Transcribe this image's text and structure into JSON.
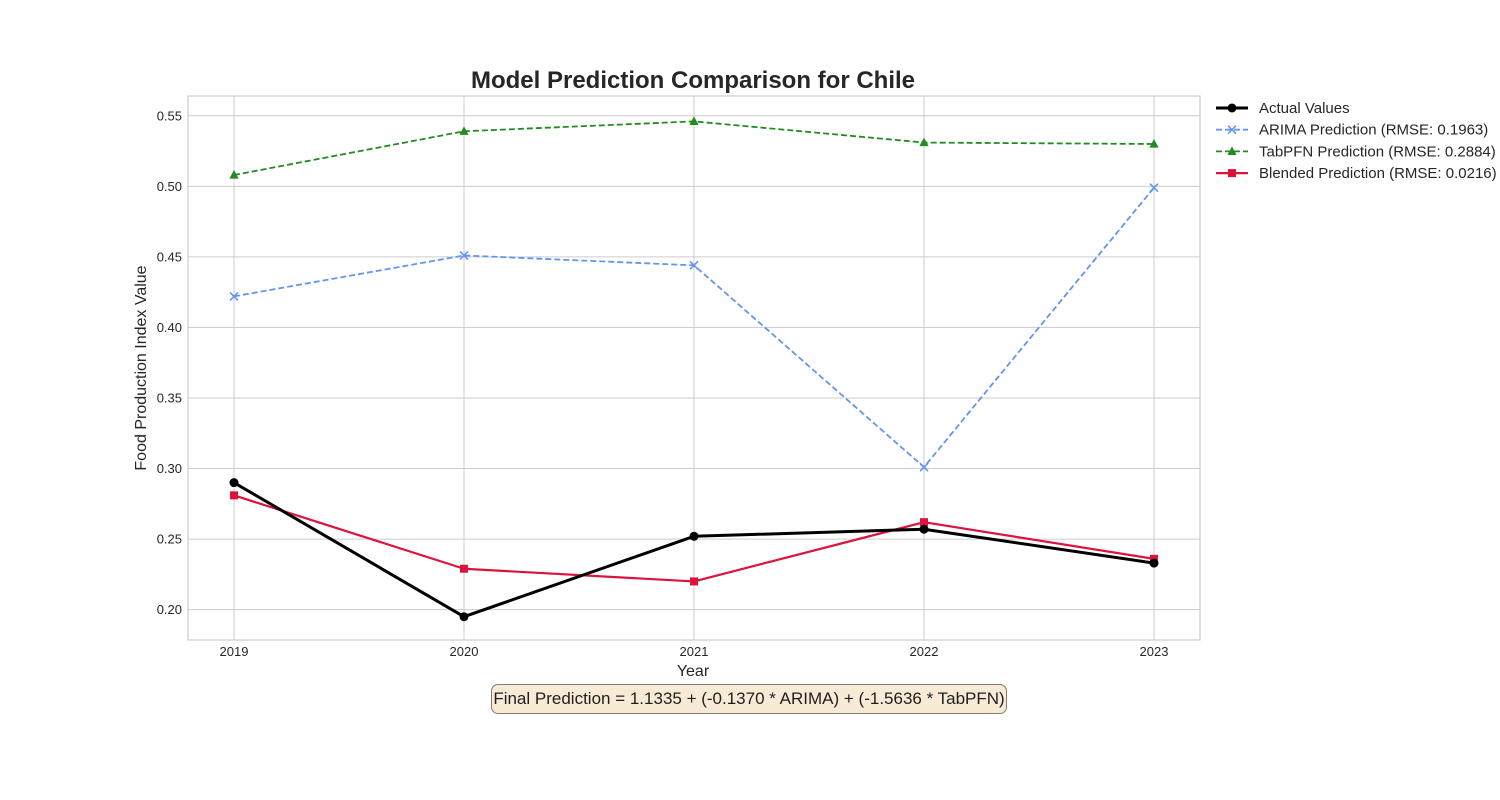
{
  "chart_data": {
    "type": "line",
    "title": "Model Prediction Comparison for Chile",
    "xlabel": "Year",
    "ylabel": "Food Production Index Value",
    "x": [
      2019,
      2020,
      2021,
      2022,
      2023
    ],
    "xlim": [
      2018.8,
      2023.2
    ],
    "ylim": [
      0.1785,
      0.564
    ],
    "yticks": [
      0.2,
      0.25,
      0.3,
      0.35,
      0.4,
      0.45,
      0.5,
      0.55
    ],
    "ytick_labels": [
      "0.20",
      "0.25",
      "0.30",
      "0.35",
      "0.40",
      "0.45",
      "0.50",
      "0.55"
    ],
    "xtick_labels": [
      "2019",
      "2020",
      "2021",
      "2022",
      "2023"
    ],
    "grid": true,
    "legend_position": "outside-top-right",
    "series": [
      {
        "name": "Actual Values",
        "values": [
          0.29,
          0.195,
          0.252,
          0.257,
          0.233
        ],
        "color": "#000000",
        "line_style": "solid",
        "marker": "circle"
      },
      {
        "name": "ARIMA Prediction (RMSE: 0.1963)",
        "values": [
          0.422,
          0.451,
          0.444,
          0.301,
          0.499
        ],
        "color": "#6495ed",
        "line_style": "dashed",
        "marker": "x"
      },
      {
        "name": "TabPFN Prediction (RMSE: 0.2884)",
        "values": [
          0.508,
          0.539,
          0.546,
          0.531,
          0.53
        ],
        "color": "#228b22",
        "line_style": "dashed",
        "marker": "triangle"
      },
      {
        "name": "Blended Prediction (RMSE: 0.0216)",
        "values": [
          0.281,
          0.229,
          0.22,
          0.262,
          0.236
        ],
        "color": "#dc143c",
        "line_style": "solid",
        "marker": "square"
      }
    ],
    "annotation": "Final Prediction = 1.1335 + (-0.1370 * ARIMA) + (-1.5636 * TabPFN)"
  }
}
